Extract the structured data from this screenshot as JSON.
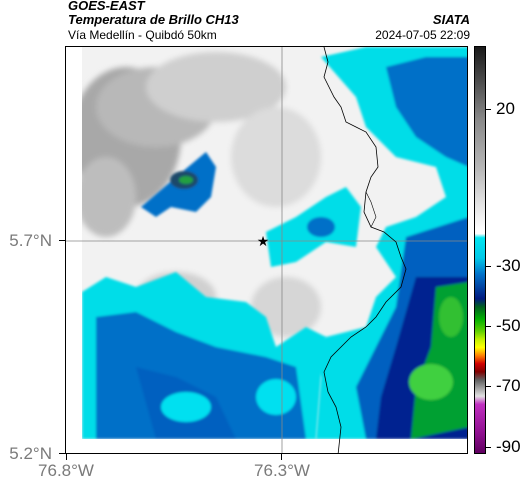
{
  "header": {
    "source": "GOES-EAST",
    "product": "Temperatura de Brillo CH13",
    "region": "Vía Medellín - Quibdó 50km",
    "organization": "SIATA",
    "timestamp": "2024-07-05 22:09"
  },
  "map": {
    "lat_labels": [
      "5.7°N",
      "5.2°N"
    ],
    "lon_labels": [
      "76.8°W",
      "76.3°W"
    ],
    "marker": "star-icon"
  },
  "colorbar": {
    "ticks": [
      "20",
      "-30",
      "-50",
      "-70",
      "-90"
    ],
    "colors": {
      "warm_gray_top": "#1a1a1a",
      "gray_mid": "#bdbdbd",
      "white": "#ffffff",
      "cyan": "#00e5f0",
      "blue": "#0060c0",
      "navy": "#001a80",
      "green": "#00b000",
      "lime": "#c0f000",
      "yellow": "#ffff00",
      "orange": "#ff8000",
      "red": "#d00000",
      "magenta": "#c030c0"
    }
  }
}
